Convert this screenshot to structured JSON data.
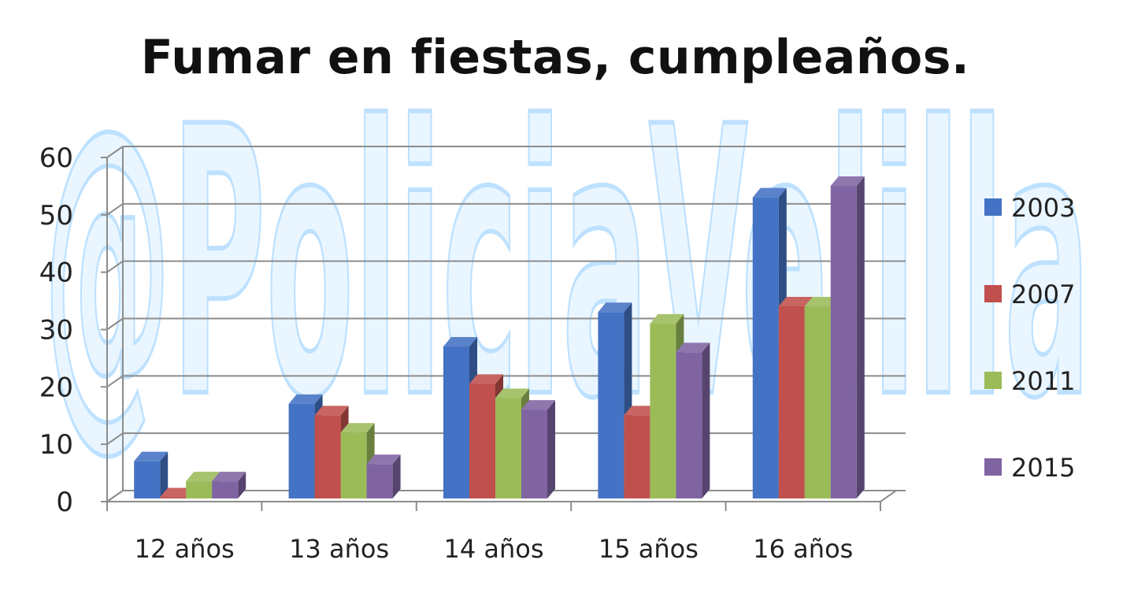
{
  "watermark": "@PoliciaVelilla",
  "chart_data": {
    "type": "bar",
    "title": "Fumar en fiestas, cumpleaños.",
    "categories": [
      "12 años",
      "13 años",
      "14 años",
      "15 años",
      "16 años"
    ],
    "series": [
      {
        "name": "2003",
        "color": "#4472C4",
        "values": [
          6.5,
          16.5,
          26.5,
          32.5,
          52.5
        ]
      },
      {
        "name": "2007",
        "color": "#C0504D",
        "values": [
          0.2,
          14.5,
          20,
          14.5,
          33.5
        ]
      },
      {
        "name": "2011",
        "color": "#9BBB59",
        "values": [
          3,
          11.5,
          17.5,
          30.5,
          33.5
        ]
      },
      {
        "name": "2015",
        "color": "#8064A2",
        "values": [
          3,
          6,
          15.5,
          25.5,
          54.5
        ]
      }
    ],
    "yticks": [
      "0",
      "10",
      "20",
      "30",
      "40",
      "50",
      "60"
    ],
    "ylim": [
      0,
      60
    ],
    "grid": true,
    "legend_position": "right",
    "style": "3d-clustered-column"
  }
}
